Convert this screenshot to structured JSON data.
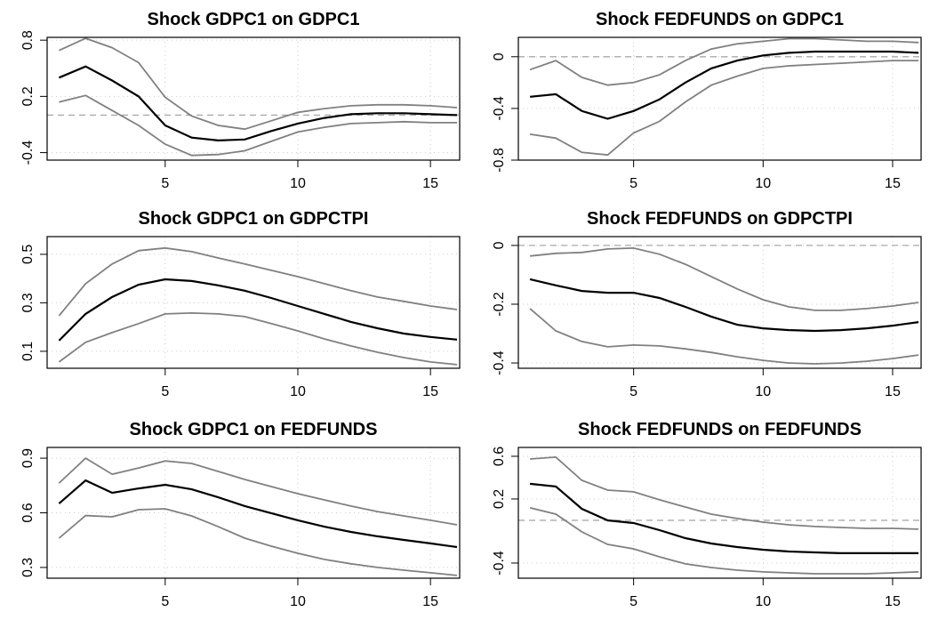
{
  "chart_data": [
    {
      "type": "line",
      "title": "Shock GDPC1 on GDPC1",
      "x": [
        1,
        2,
        3,
        4,
        5,
        6,
        7,
        8,
        9,
        10,
        11,
        12,
        13,
        14,
        15,
        16
      ],
      "xlim": [
        0.55,
        16.1
      ],
      "xticks": [
        5,
        10,
        15
      ],
      "ylim": [
        -0.48,
        0.83
      ],
      "yticks": [
        -0.4,
        0.2,
        0.8
      ],
      "grid": true,
      "hline": 0,
      "series": [
        {
          "color": "#808080",
          "values": [
            0.14,
            0.21,
            0.05,
            -0.11,
            -0.31,
            -0.43,
            -0.42,
            -0.38,
            -0.28,
            -0.18,
            -0.13,
            -0.09,
            -0.08,
            -0.07,
            -0.08,
            -0.08
          ]
        },
        {
          "color": "#808080",
          "values": [
            0.69,
            0.82,
            0.72,
            0.56,
            0.19,
            -0.01,
            -0.11,
            -0.15,
            -0.06,
            0.03,
            0.07,
            0.1,
            0.11,
            0.11,
            0.1,
            0.08
          ]
        },
        {
          "color": "#000000",
          "values": [
            0.4,
            0.52,
            0.37,
            0.2,
            -0.11,
            -0.24,
            -0.27,
            -0.26,
            -0.17,
            -0.09,
            -0.03,
            0.01,
            0.02,
            0.02,
            0.01,
            0.0
          ]
        }
      ]
    },
    {
      "type": "line",
      "title": "Shock FEDFUNDS on GDPC1",
      "x": [
        1,
        2,
        3,
        4,
        5,
        6,
        7,
        8,
        9,
        10,
        11,
        12,
        13,
        14,
        15,
        16
      ],
      "xlim": [
        0.55,
        16.1
      ],
      "xticks": [
        5,
        10,
        15
      ],
      "ylim": [
        -0.8,
        0.15
      ],
      "yticks": [
        -0.8,
        -0.4,
        0.0
      ],
      "grid": true,
      "hline": 0,
      "series": [
        {
          "color": "#808080",
          "values": [
            -0.6,
            -0.63,
            -0.74,
            -0.76,
            -0.59,
            -0.5,
            -0.35,
            -0.22,
            -0.15,
            -0.09,
            -0.07,
            -0.06,
            -0.05,
            -0.04,
            -0.03,
            -0.03
          ]
        },
        {
          "color": "#808080",
          "values": [
            -0.1,
            -0.03,
            -0.16,
            -0.22,
            -0.2,
            -0.14,
            -0.03,
            0.06,
            0.1,
            0.12,
            0.14,
            0.14,
            0.13,
            0.12,
            0.12,
            0.11
          ]
        },
        {
          "color": "#000000",
          "values": [
            -0.31,
            -0.29,
            -0.42,
            -0.48,
            -0.42,
            -0.33,
            -0.2,
            -0.09,
            -0.03,
            0.01,
            0.03,
            0.04,
            0.04,
            0.04,
            0.04,
            0.03
          ]
        }
      ]
    },
    {
      "type": "line",
      "title": "Shock GDPC1 on GDPCTPI",
      "x": [
        1,
        2,
        3,
        4,
        5,
        6,
        7,
        8,
        9,
        10,
        11,
        12,
        13,
        14,
        15,
        16
      ],
      "xlim": [
        0.55,
        16.1
      ],
      "xticks": [
        5,
        10,
        15
      ],
      "ylim": [
        0.03,
        0.573
      ],
      "yticks": [
        0.1,
        0.3,
        0.5
      ],
      "grid": true,
      "hline": 0,
      "series": [
        {
          "color": "#808080",
          "values": [
            0.056,
            0.137,
            0.177,
            0.214,
            0.254,
            0.258,
            0.254,
            0.243,
            0.214,
            0.184,
            0.151,
            0.122,
            0.096,
            0.074,
            0.056,
            0.045
          ]
        },
        {
          "color": "#808080",
          "values": [
            0.247,
            0.379,
            0.46,
            0.515,
            0.526,
            0.511,
            0.485,
            0.46,
            0.434,
            0.408,
            0.379,
            0.35,
            0.324,
            0.306,
            0.287,
            0.272
          ]
        },
        {
          "color": "#000000",
          "values": [
            0.144,
            0.254,
            0.324,
            0.375,
            0.397,
            0.39,
            0.372,
            0.35,
            0.32,
            0.287,
            0.254,
            0.221,
            0.195,
            0.173,
            0.159,
            0.148
          ]
        }
      ]
    },
    {
      "type": "line",
      "title": "Shock FEDFUNDS on GDPCTPI",
      "x": [
        1,
        2,
        3,
        4,
        5,
        6,
        7,
        8,
        9,
        10,
        11,
        12,
        13,
        14,
        15,
        16
      ],
      "xlim": [
        0.55,
        16.1
      ],
      "xticks": [
        5,
        10,
        15
      ],
      "ylim": [
        -0.418,
        0.03
      ],
      "yticks": [
        -0.4,
        -0.2,
        0.0
      ],
      "grid": true,
      "hline": 0,
      "series": [
        {
          "color": "#808080",
          "values": [
            -0.215,
            -0.291,
            -0.327,
            -0.345,
            -0.339,
            -0.342,
            -0.352,
            -0.364,
            -0.379,
            -0.391,
            -0.4,
            -0.403,
            -0.4,
            -0.394,
            -0.385,
            -0.373
          ]
        },
        {
          "color": "#808080",
          "values": [
            -0.036,
            -0.027,
            -0.024,
            -0.012,
            -0.009,
            -0.03,
            -0.064,
            -0.106,
            -0.148,
            -0.185,
            -0.209,
            -0.221,
            -0.221,
            -0.215,
            -0.206,
            -0.194
          ]
        },
        {
          "color": "#000000",
          "values": [
            -0.115,
            -0.136,
            -0.155,
            -0.161,
            -0.161,
            -0.179,
            -0.209,
            -0.242,
            -0.27,
            -0.282,
            -0.288,
            -0.291,
            -0.288,
            -0.282,
            -0.273,
            -0.261
          ]
        }
      ]
    },
    {
      "type": "line",
      "title": "Shock GDPC1 on FEDFUNDS",
      "x": [
        1,
        2,
        3,
        4,
        5,
        6,
        7,
        8,
        9,
        10,
        11,
        12,
        13,
        14,
        15,
        16
      ],
      "xlim": [
        0.55,
        16.1
      ],
      "xticks": [
        5,
        10,
        15
      ],
      "ylim": [
        0.241,
        0.959
      ],
      "yticks": [
        0.3,
        0.6,
        0.9
      ],
      "grid": true,
      "hline": 0,
      "series": [
        {
          "color": "#808080",
          "values": [
            0.461,
            0.585,
            0.578,
            0.617,
            0.622,
            0.583,
            0.524,
            0.461,
            0.417,
            0.378,
            0.344,
            0.32,
            0.3,
            0.285,
            0.271,
            0.256
          ]
        },
        {
          "color": "#808080",
          "values": [
            0.763,
            0.9,
            0.812,
            0.846,
            0.885,
            0.871,
            0.827,
            0.783,
            0.744,
            0.705,
            0.671,
            0.637,
            0.607,
            0.583,
            0.559,
            0.534
          ]
        },
        {
          "color": "#000000",
          "values": [
            0.651,
            0.778,
            0.71,
            0.734,
            0.754,
            0.729,
            0.685,
            0.637,
            0.598,
            0.559,
            0.524,
            0.495,
            0.471,
            0.451,
            0.432,
            0.412
          ]
        }
      ]
    },
    {
      "type": "line",
      "title": "Shock FEDFUNDS on FEDFUNDS",
      "x": [
        1,
        2,
        3,
        4,
        5,
        6,
        7,
        8,
        9,
        10,
        11,
        12,
        13,
        14,
        15,
        16
      ],
      "xlim": [
        0.55,
        16.1
      ],
      "xticks": [
        5,
        10,
        15
      ],
      "ylim": [
        -0.542,
        0.683
      ],
      "yticks": [
        -0.4,
        0.2,
        0.6
      ],
      "grid": true,
      "hline": 0,
      "series": [
        {
          "color": "#808080",
          "values": [
            0.117,
            0.058,
            -0.108,
            -0.225,
            -0.267,
            -0.342,
            -0.408,
            -0.442,
            -0.467,
            -0.483,
            -0.492,
            -0.5,
            -0.5,
            -0.5,
            -0.492,
            -0.483
          ]
        },
        {
          "color": "#808080",
          "values": [
            0.575,
            0.592,
            0.375,
            0.283,
            0.267,
            0.192,
            0.125,
            0.058,
            0.017,
            -0.017,
            -0.042,
            -0.058,
            -0.067,
            -0.075,
            -0.075,
            -0.083
          ]
        },
        {
          "color": "#000000",
          "values": [
            0.342,
            0.317,
            0.108,
            0,
            -0.025,
            -0.092,
            -0.167,
            -0.217,
            -0.25,
            -0.275,
            -0.292,
            -0.3,
            -0.308,
            -0.308,
            -0.308,
            -0.308
          ]
        }
      ]
    }
  ]
}
